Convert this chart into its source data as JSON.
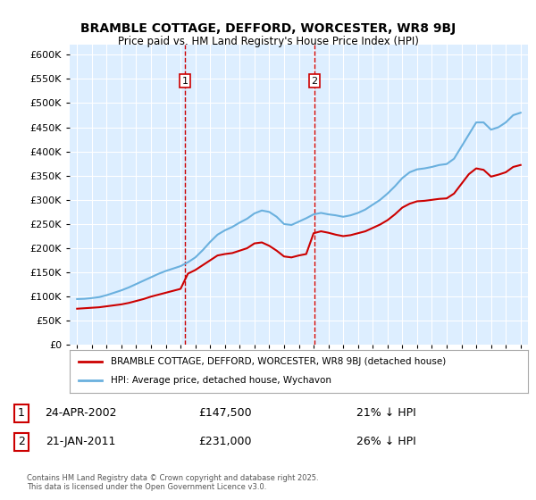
{
  "title": "BRAMBLE COTTAGE, DEFFORD, WORCESTER, WR8 9BJ",
  "subtitle": "Price paid vs. HM Land Registry's House Price Index (HPI)",
  "legend_line1": "BRAMBLE COTTAGE, DEFFORD, WORCESTER, WR8 9BJ (detached house)",
  "legend_line2": "HPI: Average price, detached house, Wychavon",
  "transaction1_label": "1",
  "transaction1_date": "24-APR-2002",
  "transaction1_price": "£147,500",
  "transaction1_hpi": "21% ↓ HPI",
  "transaction2_label": "2",
  "transaction2_date": "21-JAN-2011",
  "transaction2_price": "£231,000",
  "transaction2_hpi": "26% ↓ HPI",
  "vline1_x": 2002.3,
  "vline2_x": 2011.05,
  "hpi_color": "#6ab0de",
  "price_color": "#cc0000",
  "vline_color": "#cc0000",
  "background_color": "#ddeeff",
  "ylim": [
    0,
    620000
  ],
  "xlim": [
    1994.5,
    2025.5
  ],
  "copyright": "Contains HM Land Registry data © Crown copyright and database right 2025.\nThis data is licensed under the Open Government Licence v3.0.",
  "hpi_data_x": [
    1995,
    1995.5,
    1996,
    1996.5,
    1997,
    1997.5,
    1998,
    1998.5,
    1999,
    1999.5,
    2000,
    2000.5,
    2001,
    2001.5,
    2002,
    2002.5,
    2003,
    2003.5,
    2004,
    2004.5,
    2005,
    2005.5,
    2006,
    2006.5,
    2007,
    2007.5,
    2008,
    2008.5,
    2009,
    2009.5,
    2010,
    2010.5,
    2011,
    2011.5,
    2012,
    2012.5,
    2013,
    2013.5,
    2014,
    2014.5,
    2015,
    2015.5,
    2016,
    2016.5,
    2017,
    2017.5,
    2018,
    2018.5,
    2019,
    2019.5,
    2020,
    2020.5,
    2021,
    2021.5,
    2022,
    2022.5,
    2023,
    2023.5,
    2024,
    2024.5,
    2025
  ],
  "hpi_data_y": [
    95000,
    95500,
    97000,
    99000,
    103000,
    108000,
    113000,
    119000,
    126000,
    133000,
    140000,
    147000,
    153000,
    158000,
    163000,
    171000,
    181000,
    196000,
    213000,
    228000,
    237000,
    244000,
    253000,
    261000,
    272000,
    278000,
    275000,
    265000,
    250000,
    248000,
    255000,
    262000,
    270000,
    273000,
    270000,
    268000,
    265000,
    268000,
    273000,
    280000,
    290000,
    300000,
    313000,
    328000,
    345000,
    357000,
    363000,
    365000,
    368000,
    372000,
    374000,
    385000,
    410000,
    435000,
    460000,
    460000,
    445000,
    450000,
    460000,
    475000,
    480000
  ],
  "price_data_x": [
    1995,
    1995.5,
    1996,
    1996.5,
    1997,
    1997.5,
    1998,
    1998.5,
    1999,
    1999.5,
    2000,
    2000.5,
    2001,
    2001.5,
    2002,
    2002.5,
    2003,
    2003.5,
    2004,
    2004.5,
    2005,
    2005.5,
    2006,
    2006.5,
    2007,
    2007.5,
    2008,
    2008.5,
    2009,
    2009.5,
    2010,
    2010.5,
    2011,
    2011.5,
    2012,
    2012.5,
    2013,
    2013.5,
    2014,
    2014.5,
    2015,
    2015.5,
    2016,
    2016.5,
    2017,
    2017.5,
    2018,
    2018.5,
    2019,
    2019.5,
    2020,
    2020.5,
    2021,
    2021.5,
    2022,
    2022.5,
    2023,
    2023.5,
    2024,
    2024.5,
    2025
  ],
  "price_data_y": [
    75000,
    76000,
    77000,
    78000,
    80000,
    82000,
    84000,
    87000,
    91000,
    95000,
    100000,
    104000,
    108000,
    112000,
    116000,
    147500,
    155000,
    165000,
    175000,
    185000,
    188000,
    190000,
    195000,
    200000,
    210000,
    212000,
    205000,
    195000,
    183000,
    181000,
    185000,
    188000,
    231000,
    235000,
    232000,
    228000,
    225000,
    227000,
    231000,
    235000,
    242000,
    249000,
    258000,
    270000,
    284000,
    292000,
    297000,
    298000,
    300000,
    302000,
    303000,
    313000,
    333000,
    353000,
    365000,
    362000,
    348000,
    352000,
    357000,
    368000,
    372000
  ]
}
